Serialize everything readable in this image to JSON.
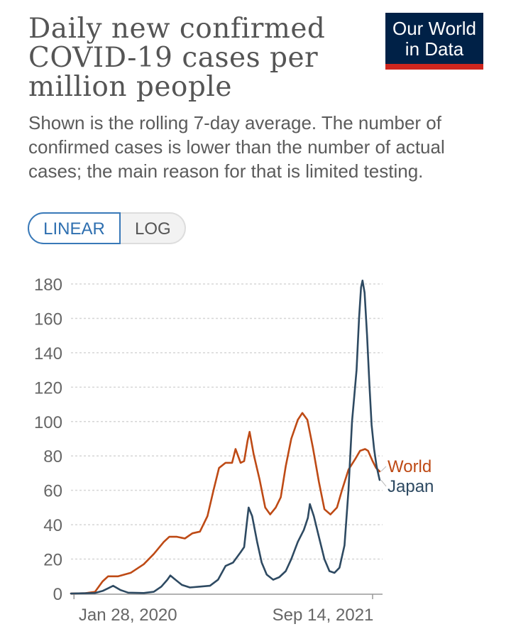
{
  "header": {
    "title": "Daily new confirmed COVID-19 cases per million people",
    "subtitle": "Shown is the rolling 7-day average. The number of confirmed cases is lower than the number of actual cases; the main reason for that is limited testing.",
    "logo_line1": "Our World",
    "logo_line2": "in Data"
  },
  "scale_toggle": {
    "linear_label": "LINEAR",
    "log_label": "LOG",
    "selected": "LINEAR"
  },
  "colors": {
    "world": "#be4a15",
    "japan": "#2e4a62",
    "grid": "#d6d6d6",
    "axis": "#666666"
  },
  "chart_data": {
    "type": "line",
    "title": "Daily new confirmed COVID-19 cases per million people",
    "xlabel": "",
    "ylabel": "",
    "ylim": [
      0,
      180
    ],
    "yticks": [
      0,
      20,
      40,
      60,
      80,
      100,
      120,
      140,
      160,
      180
    ],
    "x_domain": [
      "2020-01-22",
      "2021-10-01"
    ],
    "x_tick_labels": [
      {
        "date": "2020-01-28",
        "label": "Jan 28, 2020"
      },
      {
        "date": "2021-09-14",
        "label": "Sep 14, 2021"
      }
    ],
    "series": [
      {
        "name": "World",
        "color_key": "world",
        "points": [
          [
            "2020-01-22",
            0
          ],
          [
            "2020-02-20",
            0.2
          ],
          [
            "2020-03-10",
            1
          ],
          [
            "2020-03-25",
            7
          ],
          [
            "2020-04-05",
            10
          ],
          [
            "2020-04-25",
            10
          ],
          [
            "2020-05-20",
            12
          ],
          [
            "2020-06-15",
            17
          ],
          [
            "2020-07-05",
            23
          ],
          [
            "2020-07-25",
            30
          ],
          [
            "2020-08-05",
            33
          ],
          [
            "2020-08-20",
            33
          ],
          [
            "2020-09-05",
            32
          ],
          [
            "2020-09-20",
            35
          ],
          [
            "2020-10-05",
            36
          ],
          [
            "2020-10-20",
            45
          ],
          [
            "2020-11-01",
            60
          ],
          [
            "2020-11-12",
            73
          ],
          [
            "2020-11-25",
            76
          ],
          [
            "2020-12-08",
            76
          ],
          [
            "2020-12-15",
            84
          ],
          [
            "2020-12-25",
            76
          ],
          [
            "2021-01-01",
            77
          ],
          [
            "2021-01-08",
            89
          ],
          [
            "2021-01-12",
            94
          ],
          [
            "2021-01-20",
            81
          ],
          [
            "2021-02-01",
            66
          ],
          [
            "2021-02-12",
            50
          ],
          [
            "2021-02-22",
            46
          ],
          [
            "2021-03-05",
            50
          ],
          [
            "2021-03-15",
            56
          ],
          [
            "2021-03-25",
            74
          ],
          [
            "2021-04-05",
            90
          ],
          [
            "2021-04-18",
            101
          ],
          [
            "2021-04-27",
            105
          ],
          [
            "2021-05-07",
            101
          ],
          [
            "2021-05-18",
            85
          ],
          [
            "2021-05-30",
            65
          ],
          [
            "2021-06-10",
            49
          ],
          [
            "2021-06-22",
            46
          ],
          [
            "2021-07-05",
            50
          ],
          [
            "2021-07-15",
            60
          ],
          [
            "2021-07-28",
            72
          ],
          [
            "2021-08-10",
            78
          ],
          [
            "2021-08-20",
            83
          ],
          [
            "2021-08-30",
            84
          ],
          [
            "2021-09-05",
            83
          ],
          [
            "2021-09-14",
            77
          ],
          [
            "2021-09-21",
            73
          ],
          [
            "2021-09-28",
            71
          ]
        ]
      },
      {
        "name": "Japan",
        "color_key": "japan",
        "points": [
          [
            "2020-01-22",
            0
          ],
          [
            "2020-03-10",
            0.3
          ],
          [
            "2020-03-25",
            1.5
          ],
          [
            "2020-04-05",
            3
          ],
          [
            "2020-04-15",
            4.5
          ],
          [
            "2020-04-30",
            2
          ],
          [
            "2020-05-15",
            0.5
          ],
          [
            "2020-06-15",
            0.3
          ],
          [
            "2020-07-05",
            1
          ],
          [
            "2020-07-20",
            4
          ],
          [
            "2020-08-01",
            8
          ],
          [
            "2020-08-07",
            10.5
          ],
          [
            "2020-08-15",
            8.5
          ],
          [
            "2020-08-30",
            5
          ],
          [
            "2020-09-15",
            3.5
          ],
          [
            "2020-10-05",
            4
          ],
          [
            "2020-10-25",
            4.5
          ],
          [
            "2020-11-10",
            8
          ],
          [
            "2020-11-25",
            16
          ],
          [
            "2020-12-10",
            18
          ],
          [
            "2020-12-25",
            24
          ],
          [
            "2021-01-01",
            27
          ],
          [
            "2021-01-06",
            40
          ],
          [
            "2021-01-10",
            50
          ],
          [
            "2021-01-17",
            45
          ],
          [
            "2021-01-27",
            30
          ],
          [
            "2021-02-05",
            18
          ],
          [
            "2021-02-15",
            11
          ],
          [
            "2021-02-28",
            8
          ],
          [
            "2021-03-12",
            9.5
          ],
          [
            "2021-03-25",
            13
          ],
          [
            "2021-04-05",
            20
          ],
          [
            "2021-04-18",
            30
          ],
          [
            "2021-04-30",
            37
          ],
          [
            "2021-05-08",
            44
          ],
          [
            "2021-05-12",
            52
          ],
          [
            "2021-05-20",
            45
          ],
          [
            "2021-05-30",
            33
          ],
          [
            "2021-06-10",
            20
          ],
          [
            "2021-06-20",
            13
          ],
          [
            "2021-06-30",
            12
          ],
          [
            "2021-07-10",
            15
          ],
          [
            "2021-07-20",
            28
          ],
          [
            "2021-07-28",
            60
          ],
          [
            "2021-08-04",
            100
          ],
          [
            "2021-08-08",
            113
          ],
          [
            "2021-08-13",
            130
          ],
          [
            "2021-08-18",
            160
          ],
          [
            "2021-08-22",
            178
          ],
          [
            "2021-08-25",
            182
          ],
          [
            "2021-08-29",
            175
          ],
          [
            "2021-09-03",
            150
          ],
          [
            "2021-09-08",
            120
          ],
          [
            "2021-09-12",
            98
          ],
          [
            "2021-09-17",
            84
          ],
          [
            "2021-09-22",
            74
          ],
          [
            "2021-09-28",
            66
          ]
        ]
      }
    ]
  }
}
